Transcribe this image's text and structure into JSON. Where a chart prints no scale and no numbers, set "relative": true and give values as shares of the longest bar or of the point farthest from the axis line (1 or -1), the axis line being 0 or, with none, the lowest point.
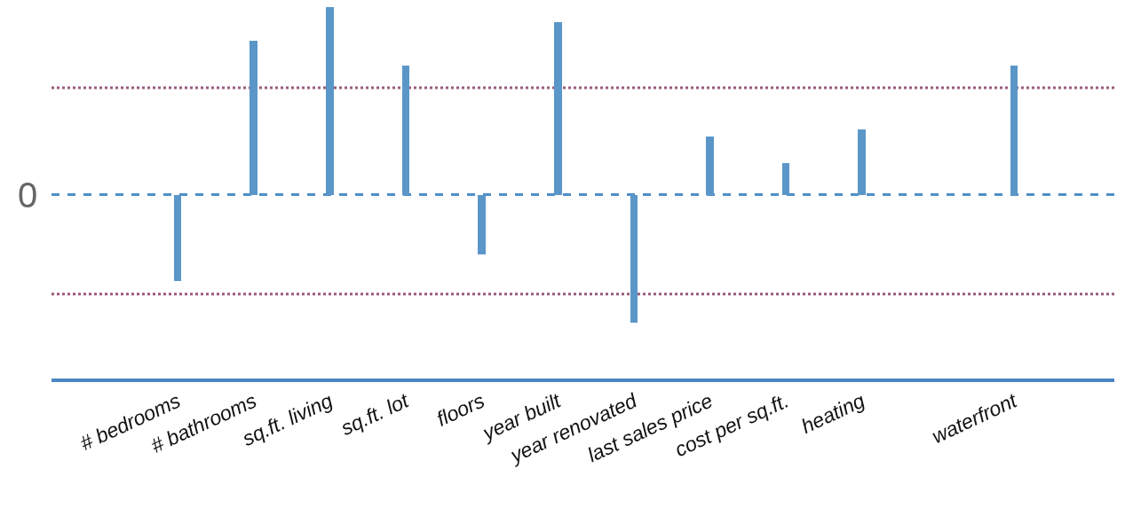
{
  "chart_data": {
    "type": "bar",
    "relative": true,
    "categories": [
      "# bedrooms",
      "# bathrooms",
      "sq.ft. living",
      "sq.ft. lot",
      "floors",
      "year built",
      "year renovated",
      "last sales price",
      "cost per sq.ft.",
      "heating",
      null,
      "waterfront"
    ],
    "values": [
      -0.46,
      0.82,
      1.0,
      0.69,
      -0.32,
      0.92,
      -0.68,
      0.31,
      0.17,
      0.35,
      null,
      0.69
    ],
    "color": "#5b96c9",
    "ref_lines": [
      {
        "axis": "y",
        "value": 0,
        "label": "0",
        "color": "#4f8fc9",
        "line_style": "dashed"
      },
      {
        "axis": "y",
        "value": 0.57,
        "color": "#9b5b7e",
        "line_style": "dotted"
      },
      {
        "axis": "y",
        "value": -0.53,
        "color": "#9b5b7e",
        "line_style": "dotted"
      }
    ],
    "grid": false
  }
}
